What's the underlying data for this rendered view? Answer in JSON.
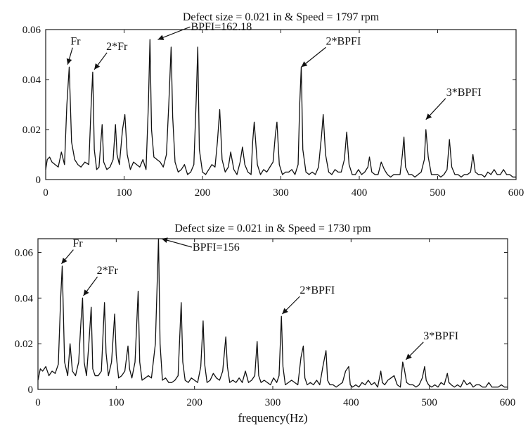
{
  "chart_data": [
    {
      "type": "line",
      "title": "Defect size = 0.021 in & Speed = 1797 rpm",
      "xlabel": "",
      "ylabel": "",
      "xlim": [
        0,
        600
      ],
      "ylim": [
        0,
        0.06
      ],
      "xticks": [
        0,
        100,
        200,
        300,
        400,
        500,
        600
      ],
      "yticks": [
        0,
        0.02,
        0.04,
        0.06
      ],
      "xtick_labels": [
        "0",
        "100",
        "200",
        "300",
        "400",
        "500",
        "600"
      ],
      "ytick_labels": [
        "0",
        "0.02",
        "0.04",
        "0.06"
      ],
      "grid": false,
      "line_color": "#111111",
      "series": [
        {
          "x": [
            0,
            2,
            5,
            8,
            12,
            16,
            20,
            24,
            27,
            30,
            33,
            37,
            41,
            45,
            50,
            55,
            58,
            60,
            62,
            65,
            68,
            72,
            74,
            78,
            82,
            86,
            89,
            91,
            94,
            98,
            101,
            104,
            108,
            112,
            116,
            120,
            124,
            128,
            131,
            133,
            135,
            138,
            142,
            146,
            150,
            154,
            157,
            160,
            162,
            165,
            169,
            173,
            177,
            181,
            185,
            189,
            192,
            194,
            196,
            200,
            204,
            208,
            212,
            216,
            219,
            222,
            225,
            229,
            233,
            236,
            240,
            244,
            248,
            251,
            254,
            258,
            262,
            264,
            266,
            270,
            274,
            278,
            282,
            286,
            290,
            293,
            295,
            298,
            302,
            306,
            310,
            314,
            318,
            322,
            324,
            326,
            328,
            332,
            336,
            340,
            344,
            348,
            352,
            354,
            357,
            361,
            365,
            369,
            373,
            377,
            381,
            384,
            387,
            391,
            395,
            399,
            403,
            407,
            411,
            413,
            416,
            420,
            424,
            428,
            432,
            436,
            440,
            444,
            448,
            452,
            455,
            457,
            459,
            463,
            467,
            471,
            475,
            479,
            483,
            485,
            488,
            492,
            496,
            500,
            504,
            508,
            512,
            515,
            518,
            522,
            526,
            530,
            534,
            538,
            542,
            545,
            548,
            552,
            556,
            560,
            564,
            568,
            572,
            576,
            580,
            584,
            588,
            592,
            596,
            600
          ],
          "y": [
            0.004,
            0.008,
            0.009,
            0.007,
            0.006,
            0.005,
            0.011,
            0.006,
            0.03,
            0.045,
            0.015,
            0.008,
            0.006,
            0.005,
            0.007,
            0.006,
            0.03,
            0.043,
            0.012,
            0.004,
            0.005,
            0.022,
            0.007,
            0.004,
            0.005,
            0.008,
            0.022,
            0.01,
            0.006,
            0.02,
            0.026,
            0.01,
            0.004,
            0.007,
            0.006,
            0.005,
            0.008,
            0.004,
            0.03,
            0.056,
            0.02,
            0.009,
            0.008,
            0.007,
            0.005,
            0.01,
            0.03,
            0.053,
            0.025,
            0.007,
            0.003,
            0.004,
            0.006,
            0.002,
            0.003,
            0.006,
            0.032,
            0.053,
            0.012,
            0.003,
            0.002,
            0.004,
            0.006,
            0.005,
            0.015,
            0.028,
            0.008,
            0.003,
            0.005,
            0.011,
            0.004,
            0.002,
            0.007,
            0.013,
            0.006,
            0.003,
            0.002,
            0.015,
            0.023,
            0.006,
            0.002,
            0.004,
            0.003,
            0.005,
            0.007,
            0.018,
            0.023,
            0.006,
            0.002,
            0.003,
            0.003,
            0.004,
            0.002,
            0.006,
            0.03,
            0.045,
            0.012,
            0.003,
            0.002,
            0.003,
            0.002,
            0.005,
            0.018,
            0.026,
            0.01,
            0.003,
            0.002,
            0.004,
            0.003,
            0.003,
            0.008,
            0.019,
            0.006,
            0.002,
            0.002,
            0.004,
            0.002,
            0.003,
            0.005,
            0.009,
            0.003,
            0.002,
            0.002,
            0.007,
            0.004,
            0.002,
            0.001,
            0.002,
            0.002,
            0.002,
            0.01,
            0.017,
            0.005,
            0.002,
            0.002,
            0.001,
            0.002,
            0.003,
            0.008,
            0.02,
            0.009,
            0.002,
            0.002,
            0.002,
            0.001,
            0.002,
            0.004,
            0.016,
            0.005,
            0.002,
            0.002,
            0.001,
            0.002,
            0.002,
            0.003,
            0.01,
            0.003,
            0.002,
            0.002,
            0.001,
            0.003,
            0.002,
            0.004,
            0.002,
            0.002,
            0.004,
            0.002,
            0.002,
            0.001,
            0.001
          ]
        }
      ],
      "annotations": [
        {
          "text": "Fr",
          "target_x": 28,
          "target_y": 0.046
        },
        {
          "text": "2*Fr",
          "target_x": 62,
          "target_y": 0.044
        },
        {
          "text": "BPFI=162.18",
          "target_x": 143,
          "target_y": 0.056
        },
        {
          "text": "2*BPFI",
          "target_x": 326,
          "target_y": 0.045
        },
        {
          "text": "3*BPFI",
          "target_x": 485,
          "target_y": 0.024
        }
      ]
    },
    {
      "type": "line",
      "title": "Defect size = 0.021 in & Speed = 1730 rpm",
      "xlabel": "frequency(Hz)",
      "ylabel": "",
      "xlim": [
        0,
        600
      ],
      "ylim": [
        0,
        0.066
      ],
      "xticks": [
        0,
        100,
        200,
        300,
        400,
        500,
        600
      ],
      "yticks": [
        0,
        0.02,
        0.04,
        0.06
      ],
      "xtick_labels": [
        "0",
        "100",
        "200",
        "300",
        "400",
        "500",
        "600"
      ],
      "ytick_labels": [
        "0",
        "0.02",
        "0.04",
        "0.06"
      ],
      "grid": false,
      "line_color": "#111111",
      "series": [
        {
          "x": [
            0,
            3,
            6,
            10,
            14,
            18,
            22,
            26,
            29,
            31,
            34,
            38,
            41,
            44,
            48,
            52,
            55,
            57,
            59,
            62,
            65,
            68,
            70,
            73,
            77,
            81,
            85,
            87,
            90,
            94,
            98,
            100,
            103,
            107,
            111,
            115,
            117,
            120,
            124,
            128,
            130,
            133,
            137,
            141,
            145,
            150,
            154,
            156,
            159,
            163,
            167,
            171,
            175,
            179,
            183,
            185,
            188,
            192,
            196,
            200,
            204,
            208,
            211,
            213,
            216,
            220,
            224,
            228,
            232,
            236,
            240,
            242,
            245,
            249,
            253,
            257,
            261,
            265,
            269,
            273,
            277,
            280,
            282,
            285,
            289,
            293,
            297,
            301,
            305,
            308,
            311,
            313,
            316,
            320,
            324,
            328,
            332,
            336,
            339,
            341,
            344,
            348,
            352,
            356,
            360,
            364,
            368,
            370,
            373,
            377,
            381,
            385,
            389,
            393,
            397,
            399,
            402,
            406,
            410,
            414,
            418,
            422,
            426,
            430,
            434,
            438,
            440,
            443,
            447,
            451,
            455,
            459,
            463,
            466,
            468,
            471,
            475,
            479,
            483,
            487,
            491,
            494,
            496,
            499,
            503,
            507,
            511,
            515,
            519,
            523,
            525,
            528,
            532,
            536,
            540,
            544,
            548,
            552,
            556,
            560,
            564,
            568,
            572,
            576,
            580,
            584,
            588,
            592,
            596,
            600
          ],
          "y": [
            0.004,
            0.009,
            0.008,
            0.01,
            0.006,
            0.008,
            0.007,
            0.011,
            0.04,
            0.054,
            0.012,
            0.006,
            0.02,
            0.008,
            0.006,
            0.012,
            0.03,
            0.04,
            0.012,
            0.006,
            0.02,
            0.036,
            0.009,
            0.006,
            0.006,
            0.008,
            0.038,
            0.016,
            0.006,
            0.012,
            0.033,
            0.015,
            0.005,
            0.006,
            0.008,
            0.019,
            0.009,
            0.005,
            0.012,
            0.043,
            0.012,
            0.004,
            0.005,
            0.006,
            0.005,
            0.02,
            0.066,
            0.02,
            0.004,
            0.005,
            0.003,
            0.003,
            0.004,
            0.006,
            0.038,
            0.012,
            0.004,
            0.003,
            0.005,
            0.004,
            0.003,
            0.01,
            0.03,
            0.011,
            0.003,
            0.004,
            0.007,
            0.005,
            0.004,
            0.008,
            0.023,
            0.01,
            0.003,
            0.004,
            0.003,
            0.005,
            0.003,
            0.008,
            0.003,
            0.004,
            0.006,
            0.021,
            0.006,
            0.003,
            0.004,
            0.003,
            0.002,
            0.005,
            0.003,
            0.006,
            0.032,
            0.01,
            0.002,
            0.003,
            0.004,
            0.003,
            0.002,
            0.014,
            0.019,
            0.005,
            0.002,
            0.003,
            0.002,
            0.004,
            0.002,
            0.01,
            0.017,
            0.004,
            0.002,
            0.002,
            0.001,
            0.002,
            0.003,
            0.008,
            0.01,
            0.002,
            0.001,
            0.002,
            0.001,
            0.003,
            0.002,
            0.004,
            0.002,
            0.003,
            0.001,
            0.008,
            0.003,
            0.002,
            0.004,
            0.005,
            0.006,
            0.002,
            0.001,
            0.012,
            0.009,
            0.003,
            0.002,
            0.002,
            0.001,
            0.002,
            0.005,
            0.01,
            0.004,
            0.002,
            0.001,
            0.002,
            0.001,
            0.003,
            0.002,
            0.007,
            0.003,
            0.002,
            0.001,
            0.002,
            0.001,
            0.004,
            0.002,
            0.003,
            0.001,
            0.002,
            0.002,
            0.001,
            0.001,
            0.003,
            0.001,
            0.001,
            0.001,
            0.002,
            0.001,
            0.001
          ]
        }
      ],
      "annotations": [
        {
          "text": "Fr",
          "target_x": 30,
          "target_y": 0.055
        },
        {
          "text": "2*Fr",
          "target_x": 58,
          "target_y": 0.041
        },
        {
          "text": "BPFI=156",
          "target_x": 158,
          "target_y": 0.066
        },
        {
          "text": "2*BPFI",
          "target_x": 312,
          "target_y": 0.033
        },
        {
          "text": "3*BPFI",
          "target_x": 470,
          "target_y": 0.013
        }
      ]
    }
  ]
}
